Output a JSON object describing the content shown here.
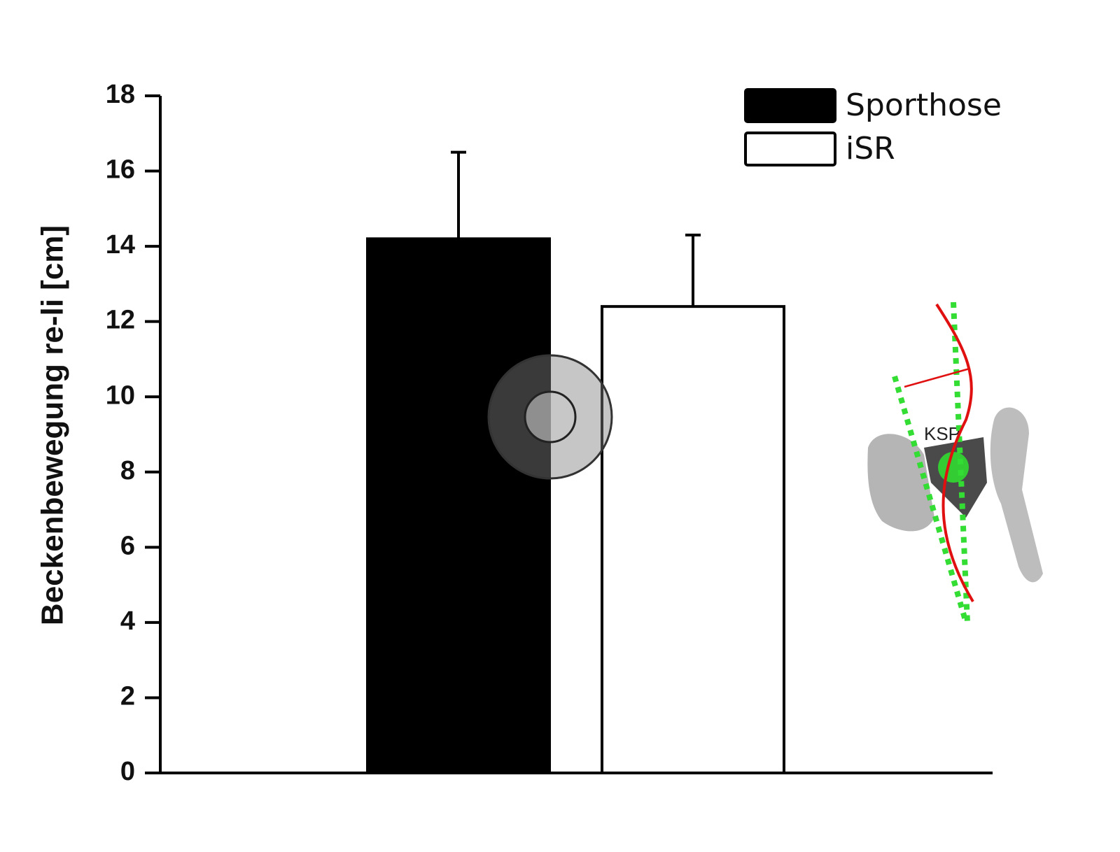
{
  "chart_data": {
    "type": "bar",
    "y_label": "Beckenbewegung re-li [cm]",
    "categories": [
      null
    ],
    "series": [
      {
        "name": "Sporthose",
        "color": "#000000",
        "values": [
          14.2
        ],
        "errors": [
          2.3
        ]
      },
      {
        "name": "iSR",
        "color": "#ffffff",
        "values": [
          12.4
        ],
        "errors": [
          1.9
        ]
      }
    ],
    "ylim": [
      0,
      18
    ],
    "yticks": [
      0,
      2,
      4,
      6,
      8,
      10,
      12,
      14,
      16,
      18
    ],
    "legend": "top-right",
    "illustration_label": "KSP"
  }
}
